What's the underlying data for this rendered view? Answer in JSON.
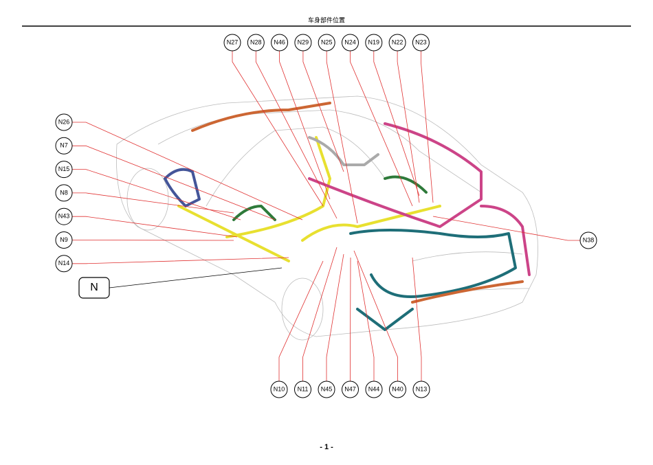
{
  "header": {
    "title": "车身部件位置"
  },
  "callouts": {
    "top": [
      "N27",
      "N28",
      "N46",
      "N29",
      "N25",
      "N24",
      "N19",
      "N22",
      "N23"
    ],
    "left": [
      "N26",
      "N7",
      "N15",
      "N8",
      "N43",
      "N9",
      "N14"
    ],
    "right": [
      "N38"
    ],
    "bottom": [
      "N10",
      "N11",
      "N45",
      "N47",
      "N44",
      "N40",
      "N13"
    ]
  },
  "main_label": "N",
  "footer": {
    "page": "- 1 -"
  }
}
